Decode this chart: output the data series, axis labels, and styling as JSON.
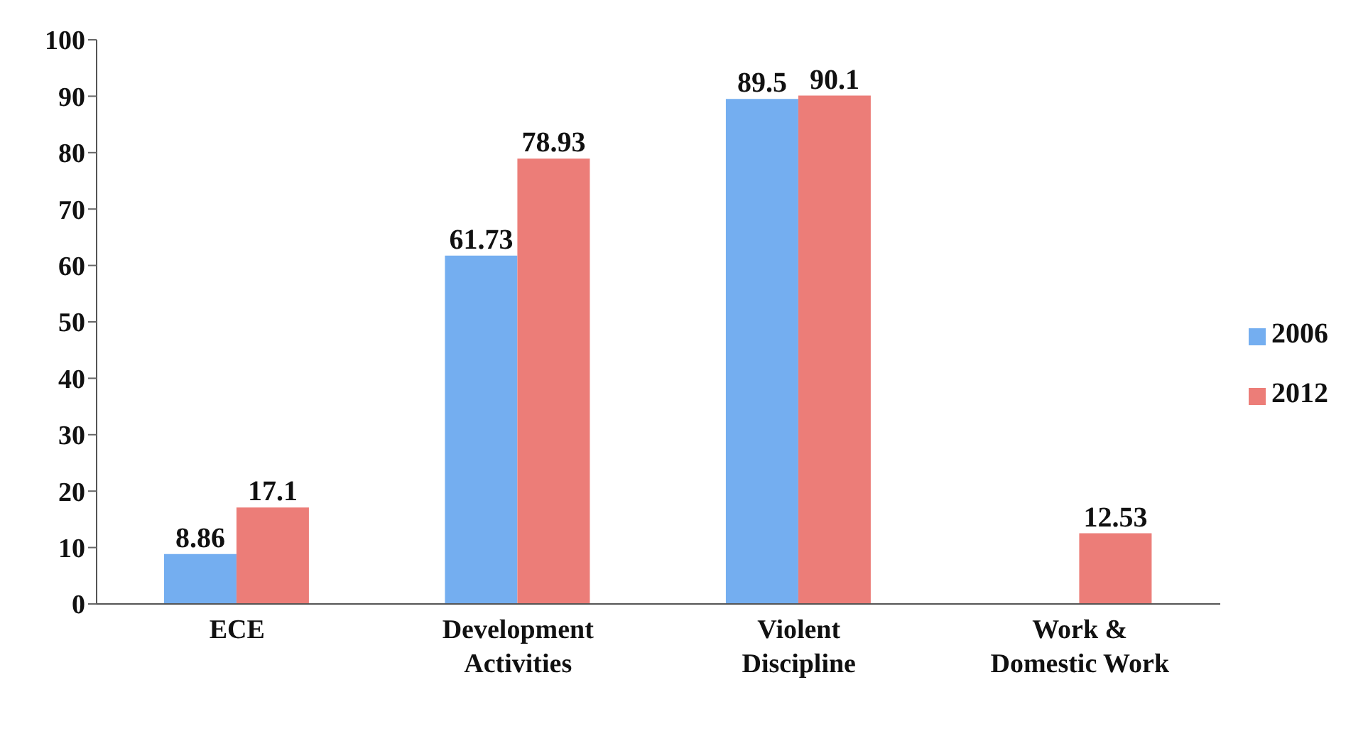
{
  "chart_data": {
    "type": "bar",
    "categories": [
      "ECE",
      "Development Activities",
      "Violent Discipline",
      "Work & Domestic Work"
    ],
    "series": [
      {
        "name": "2006",
        "color": "#74aef0",
        "values": [
          8.86,
          61.73,
          89.5,
          null
        ]
      },
      {
        "name": "2012",
        "color": "#ec7d78",
        "values": [
          17.1,
          78.93,
          90.1,
          12.53
        ]
      }
    ],
    "ylim": [
      0,
      100
    ],
    "yticks": [
      0,
      10,
      20,
      30,
      40,
      50,
      60,
      70,
      80,
      90,
      100
    ],
    "grid": false,
    "legend": "right",
    "data_labels": true
  }
}
